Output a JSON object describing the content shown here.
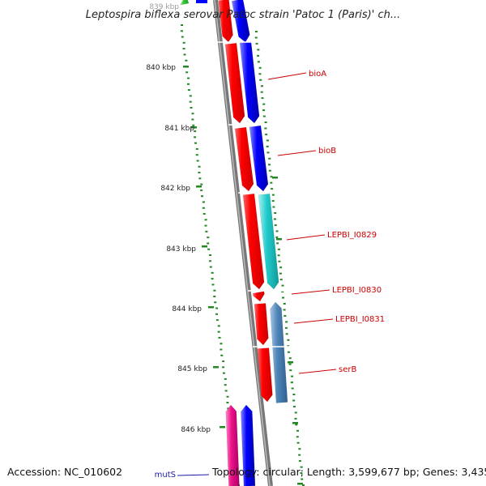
{
  "title": "Leptospira biflexa serovar Patoc strain 'Patoc 1 (Paris)' ch...",
  "footer": {
    "accession": "Accession: NC_010602",
    "topology": "Topology: circular; Length: 3,599,677 bp; Genes: 3,435"
  },
  "ticks": [
    {
      "label": "839 kbp",
      "faded": true
    },
    {
      "label": "840 kbp"
    },
    {
      "label": "841 kbp"
    },
    {
      "label": "842 kbp"
    },
    {
      "label": "843 kbp"
    },
    {
      "label": "844 kbp"
    },
    {
      "label": "845 kbp"
    },
    {
      "label": "846 kbp"
    }
  ],
  "genes": [
    {
      "name": "bioA"
    },
    {
      "name": "bioB"
    },
    {
      "name": "LEPBI_I0829"
    },
    {
      "name": "LEPBI_I0830"
    },
    {
      "name": "LEPBI_I0831"
    },
    {
      "name": "serB"
    },
    {
      "name": "mutS"
    }
  ],
  "colors": {
    "cds": "#ff0000",
    "gene_blue": "#0000ff",
    "gene_cyan": "#22cccc",
    "gene_steel": "#4f86b8",
    "gene_green": "#33cc33",
    "gene_pink": "#ee1188",
    "backbone": "#888888",
    "gc_dots": "#228822",
    "label_red": "#cc0000",
    "label_blue": "#1a1aaa"
  }
}
